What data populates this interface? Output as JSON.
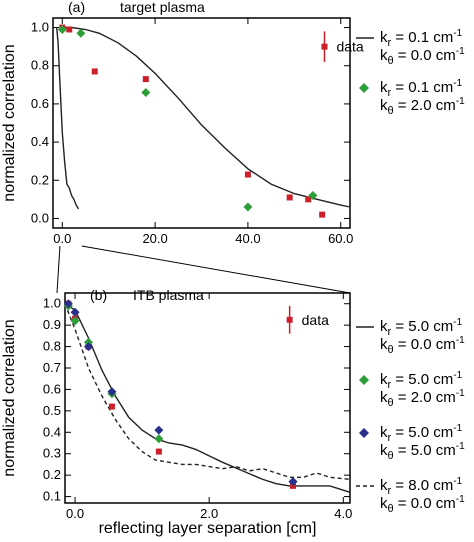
{
  "chart_data": [
    {
      "type": "line",
      "panel_label": "(a)",
      "title": "target plasma",
      "ylabel": "normalized correlation",
      "xlabel": "",
      "xlim": [
        -2,
        62
      ],
      "ylim": [
        -0.05,
        1.05
      ],
      "x_ticks": [
        0,
        20,
        40,
        60
      ],
      "x_tick_labels": [
        "0.0",
        "20.0",
        "40.0",
        "60.0"
      ],
      "y_ticks": [
        0,
        0.2,
        0.4,
        0.6,
        0.8,
        1.0
      ],
      "y_tick_labels": [
        "0.0",
        "0.2",
        "0.4",
        "0.6",
        "0.8",
        "1.0"
      ],
      "data_label": "data",
      "legend": [
        {
          "line1": "k",
          "line1_sub": "r",
          "line1_rest": " = 0.1 cm",
          "line1_sup": "-1",
          "line2": "k",
          "line2_sub": "θ",
          "line2_rest": " = 0.0 cm",
          "line2_sup": "-1",
          "marker": "solid-line"
        },
        {
          "line1": "k",
          "line1_sub": "r",
          "line1_rest": " = 0.1 cm",
          "line1_sup": "-1",
          "line2": "k",
          "line2_sub": "θ",
          "line2_rest": " = 2.0 cm",
          "line2_sup": "-1",
          "marker": "green-diamond"
        }
      ],
      "series": [
        {
          "name": "data",
          "style": "red-square",
          "x": [
            0,
            1.5,
            7,
            18,
            40,
            49,
            53,
            56
          ],
          "y": [
            1.0,
            0.99,
            0.77,
            0.73,
            0.23,
            0.11,
            0.1,
            0.02
          ],
          "errorbar": {
            "x": 56.5,
            "ylow": 0.82,
            "yhigh": 0.98
          }
        },
        {
          "name": "k_r = 0.1 cm-1, k_θ = 2.0 cm-1",
          "style": "green-diamond",
          "x": [
            0,
            4,
            18,
            40,
            54
          ],
          "y": [
            0.99,
            0.97,
            0.66,
            0.06,
            0.12
          ]
        },
        {
          "name": "k_r = 0.1 cm-1, k_θ = 0.0 cm-1",
          "style": "solid-line",
          "x": [
            0,
            2,
            5,
            8,
            12,
            16,
            20,
            25,
            30,
            35,
            40,
            45,
            50,
            55,
            60,
            62
          ],
          "y": [
            1.0,
            1.0,
            0.99,
            0.97,
            0.92,
            0.85,
            0.76,
            0.63,
            0.49,
            0.37,
            0.26,
            0.18,
            0.13,
            0.1,
            0.07,
            0.06
          ]
        },
        {
          "name": "narrow",
          "style": "solid-line",
          "x": [
            -1.2,
            -0.9,
            -0.5,
            0,
            0.5,
            1,
            1.5,
            2,
            2.5,
            3,
            3.5
          ],
          "y": [
            1.0,
            0.92,
            0.7,
            0.45,
            0.3,
            0.18,
            0.16,
            0.12,
            0.1,
            0.07,
            0.05
          ]
        }
      ]
    },
    {
      "type": "line",
      "panel_label": "(b)",
      "title": "ITB plasma",
      "ylabel": "normalized correlation",
      "xlabel": "reflecting layer separation [cm]",
      "xlim": [
        -0.15,
        4.1
      ],
      "ylim": [
        0.07,
        1.05
      ],
      "x_ticks": [
        0,
        2,
        4
      ],
      "x_tick_labels": [
        "0.0",
        "2.0",
        "4.0"
      ],
      "y_ticks": [
        0.1,
        0.2,
        0.3,
        0.4,
        0.5,
        0.6,
        0.7,
        0.8,
        0.9,
        1.0
      ],
      "y_tick_labels": [
        "0.1",
        "0.2",
        "0.3",
        "0.4",
        "0.5",
        "0.6",
        "0.7",
        "0.8",
        "0.9",
        "1.0"
      ],
      "data_label": "data",
      "legend": [
        {
          "line1": "k",
          "line1_sub": "r",
          "line1_rest": " = 5.0 cm",
          "line1_sup": "-1",
          "line2": "k",
          "line2_sub": "θ",
          "line2_rest": " = 0.0 cm",
          "line2_sup": "-1",
          "marker": "solid-line"
        },
        {
          "line1": "k",
          "line1_sub": "r",
          "line1_rest": " = 5.0 cm",
          "line1_sup": "-1",
          "line2": "k",
          "line2_sub": "θ",
          "line2_rest": " = 2.0 cm",
          "line2_sup": "-1",
          "marker": "green-diamond"
        },
        {
          "line1": "k",
          "line1_sub": "r",
          "line1_rest": " = 5.0 cm",
          "line1_sup": "-1",
          "line2": "k",
          "line2_sub": "θ",
          "line2_rest": " = 5.0 cm",
          "line2_sup": "-1",
          "marker": "blue-diamond"
        },
        {
          "line1": "k",
          "line1_sub": "r",
          "line1_rest": " = 8.0 cm",
          "line1_sup": "-1",
          "line2": "k",
          "line2_sub": "θ",
          "line2_rest": " = 0.0 cm",
          "line2_sup": "-1",
          "marker": "dashed-line"
        }
      ],
      "series": [
        {
          "name": "data",
          "style": "red-square",
          "x": [
            -0.1,
            0.0,
            0.2,
            0.55,
            1.25,
            3.25
          ],
          "y": [
            1.0,
            0.93,
            0.8,
            0.52,
            0.31,
            0.15
          ],
          "errorbar": {
            "x": 3.2,
            "ylow": 0.86,
            "yhigh": 0.99
          }
        },
        {
          "name": "k_r = 5.0 cm-1, k_θ = 2.0 cm-1",
          "style": "green-diamond",
          "x": [
            -0.1,
            0.0,
            0.2,
            0.55,
            1.25,
            3.25
          ],
          "y": [
            0.99,
            0.92,
            0.82,
            0.58,
            0.37,
            0.17
          ]
        },
        {
          "name": "k_r = 5.0 cm-1, k_θ = 5.0 cm-1",
          "style": "blue-diamond",
          "x": [
            -0.1,
            0.0,
            0.2,
            0.55,
            1.25,
            3.25
          ],
          "y": [
            1.0,
            0.96,
            0.8,
            0.59,
            0.41,
            0.17
          ]
        },
        {
          "name": "k_r = 5.0 cm-1, k_θ = 0.0 cm-1",
          "style": "solid-line",
          "x": [
            -0.15,
            0,
            0.2,
            0.4,
            0.6,
            0.8,
            1.0,
            1.2,
            1.4,
            1.6,
            1.8,
            2.0,
            2.2,
            2.5,
            2.8,
            3.0,
            3.2,
            3.5,
            3.8,
            4.1
          ],
          "y": [
            1.0,
            0.97,
            0.84,
            0.69,
            0.57,
            0.47,
            0.41,
            0.37,
            0.35,
            0.34,
            0.32,
            0.29,
            0.26,
            0.22,
            0.18,
            0.16,
            0.15,
            0.15,
            0.15,
            0.12
          ]
        },
        {
          "name": "k_r = 8.0 cm-1, k_θ = 0.0 cm-1",
          "style": "dashed-line",
          "x": [
            -0.15,
            0,
            0.2,
            0.4,
            0.6,
            0.8,
            1.0,
            1.2,
            1.4,
            1.6,
            1.8,
            2.0,
            2.2,
            2.4,
            2.6,
            2.8,
            3.0,
            3.2,
            3.4,
            3.6,
            3.8,
            4.1
          ],
          "y": [
            1.0,
            0.88,
            0.7,
            0.57,
            0.46,
            0.37,
            0.31,
            0.27,
            0.26,
            0.25,
            0.25,
            0.24,
            0.23,
            0.24,
            0.22,
            0.23,
            0.21,
            0.19,
            0.19,
            0.21,
            0.19,
            0.18
          ]
        }
      ]
    }
  ],
  "colors": {
    "data": "#cc1f2a",
    "green": "#2e9e3a",
    "blue": "#2a2f8c",
    "line": "#222222"
  }
}
